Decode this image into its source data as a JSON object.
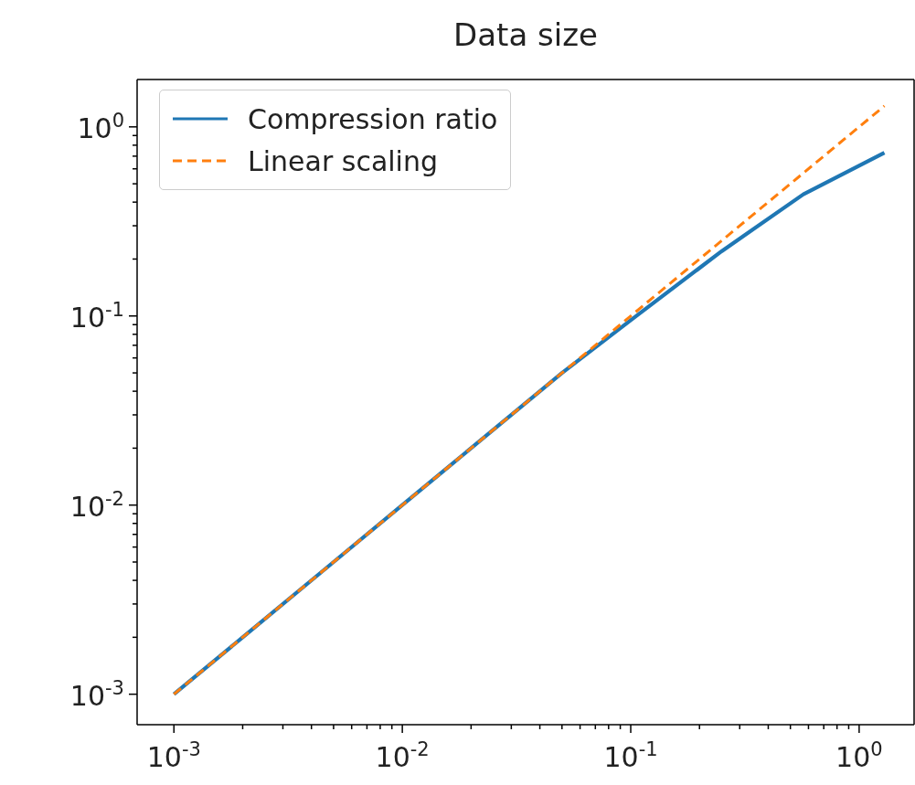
{
  "chart_data": {
    "type": "line",
    "title": "Data size",
    "log": "xy",
    "grid": false,
    "legend": "top left",
    "marker": "none",
    "xlim": [
      0.00069,
      1.74
    ],
    "ylim": [
      0.00069,
      1.78
    ],
    "xticks": [
      {
        "value": 0.001,
        "label": "10$^{-3}$"
      },
      {
        "value": 0.002,
        "label": null
      },
      {
        "value": 0.003,
        "label": null
      },
      {
        "value": 0.004,
        "label": null
      },
      {
        "value": 0.005,
        "label": null
      },
      {
        "value": 0.006,
        "label": null
      },
      {
        "value": 0.007,
        "label": null
      },
      {
        "value": 0.008,
        "label": null
      },
      {
        "value": 0.009,
        "label": null
      },
      {
        "value": 0.01,
        "label": "10$^{-2}$"
      },
      {
        "value": 0.02,
        "label": null
      },
      {
        "value": 0.03,
        "label": null
      },
      {
        "value": 0.04,
        "label": null
      },
      {
        "value": 0.05,
        "label": null
      },
      {
        "value": 0.06,
        "label": null
      },
      {
        "value": 0.07,
        "label": null
      },
      {
        "value": 0.08,
        "label": null
      },
      {
        "value": 0.09,
        "label": null
      },
      {
        "value": 0.1,
        "label": "10$^{-1}$"
      },
      {
        "value": 0.2,
        "label": null
      },
      {
        "value": 0.3,
        "label": null
      },
      {
        "value": 0.4,
        "label": null
      },
      {
        "value": 0.5,
        "label": null
      },
      {
        "value": 0.6,
        "label": null
      },
      {
        "value": 0.7,
        "label": null
      },
      {
        "value": 0.8,
        "label": null
      },
      {
        "value": 0.9,
        "label": null
      },
      {
        "value": 1,
        "label": "10$^{0}$"
      }
    ],
    "yticks": [
      {
        "value": 0.001,
        "label": "10$^{-3}$"
      },
      {
        "value": 0.002,
        "label": null
      },
      {
        "value": 0.003,
        "label": null
      },
      {
        "value": 0.004,
        "label": null
      },
      {
        "value": 0.005,
        "label": null
      },
      {
        "value": 0.006,
        "label": null
      },
      {
        "value": 0.007,
        "label": null
      },
      {
        "value": 0.008,
        "label": null
      },
      {
        "value": 0.009,
        "label": null
      },
      {
        "value": 0.01,
        "label": "10$^{-2}$"
      },
      {
        "value": 0.02,
        "label": null
      },
      {
        "value": 0.03,
        "label": null
      },
      {
        "value": 0.04,
        "label": null
      },
      {
        "value": 0.05,
        "label": null
      },
      {
        "value": 0.06,
        "label": null
      },
      {
        "value": 0.07,
        "label": null
      },
      {
        "value": 0.08,
        "label": null
      },
      {
        "value": 0.09,
        "label": null
      },
      {
        "value": 0.1,
        "label": "10$^{-1}$"
      },
      {
        "value": 0.2,
        "label": null
      },
      {
        "value": 0.3,
        "label": null
      },
      {
        "value": 0.4,
        "label": null
      },
      {
        "value": 0.5,
        "label": null
      },
      {
        "value": 0.6,
        "label": null
      },
      {
        "value": 0.7,
        "label": null
      },
      {
        "value": 0.8,
        "label": null
      },
      {
        "value": 0.9,
        "label": null
      },
      {
        "value": 1,
        "label": "10$^{0}$"
      }
    ],
    "series": [
      {
        "name": "Compression ratio",
        "color": "#1f77b4",
        "line_style": "solid",
        "x": [
          0.001,
          0.002,
          0.005,
          0.01,
          0.02,
          0.05,
          0.1,
          0.25,
          0.57,
          1.29
        ],
        "values": [
          0.001,
          0.002,
          0.005,
          0.01,
          0.02,
          0.05,
          0.095,
          0.22,
          0.44,
          0.73
        ]
      },
      {
        "name": "Linear scaling",
        "color": "#ff7f0e",
        "line_style": "dashed",
        "x": [
          0.001,
          1.29
        ],
        "values": [
          0.001,
          1.29
        ]
      }
    ]
  }
}
